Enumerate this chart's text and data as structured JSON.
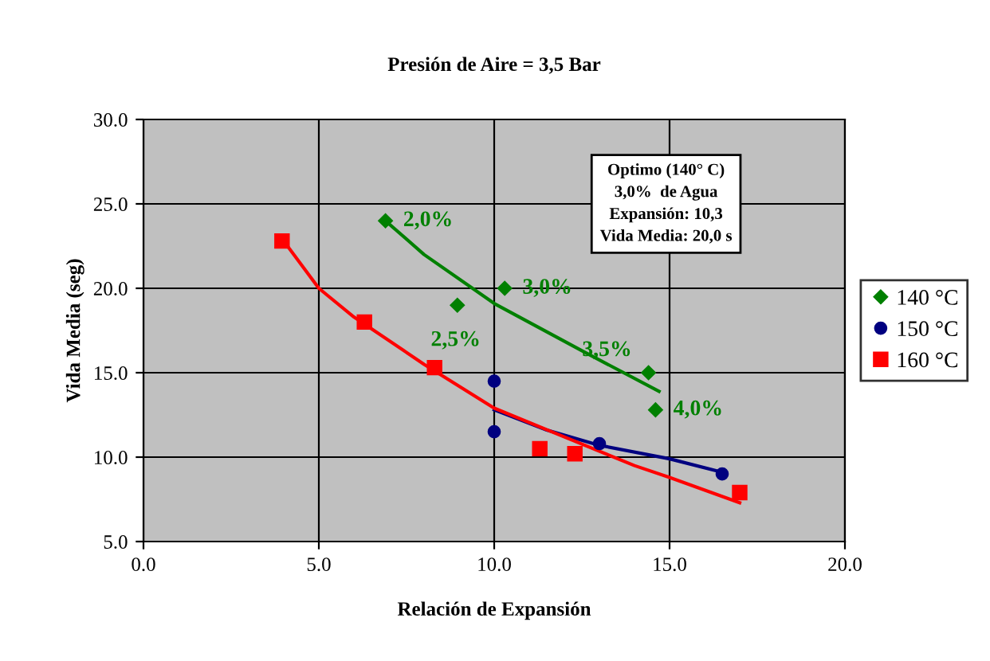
{
  "chart_data": {
    "type": "scatter",
    "title": "Presión de Aire = 3,5 Bar",
    "xlabel": "Relación de Expansión",
    "ylabel": "Vida Media (seg)",
    "xlim": [
      0,
      20
    ],
    "ylim": [
      5,
      30
    ],
    "xticks": [
      {
        "value": 0,
        "label": "0.0"
      },
      {
        "value": 5,
        "label": "5.0"
      },
      {
        "value": 10,
        "label": "10.0"
      },
      {
        "value": 15,
        "label": "15.0"
      },
      {
        "value": 20,
        "label": "20.0"
      }
    ],
    "yticks": [
      {
        "value": 5,
        "label": "5.0"
      },
      {
        "value": 10,
        "label": "10.0"
      },
      {
        "value": 15,
        "label": "15.0"
      },
      {
        "value": 20,
        "label": "20.0"
      },
      {
        "value": 25,
        "label": "25.0"
      },
      {
        "value": 30,
        "label": "30.0"
      }
    ],
    "grid": true,
    "legend": "right",
    "series": [
      {
        "name": "140 °C",
        "color": "#008000",
        "marker": "diamond",
        "x": [
          6.9,
          8.95,
          10.3,
          14.4,
          14.6
        ],
        "values": [
          24.0,
          19.0,
          20.0,
          15.0,
          12.8
        ]
      },
      {
        "name": "150 °C",
        "color": "#000080",
        "marker": "circle",
        "x": [
          10.0,
          10.0,
          13.0,
          16.5
        ],
        "values": [
          14.5,
          11.5,
          10.8,
          9.0
        ]
      },
      {
        "name": "160 °C",
        "color": "#ff0000",
        "marker": "square",
        "x": [
          3.95,
          6.3,
          8.3,
          11.3,
          12.3,
          17.0
        ],
        "values": [
          22.8,
          18.0,
          15.3,
          10.5,
          10.2,
          7.9
        ]
      },
      {
        "type": "line",
        "color": "#008000",
        "x": [
          6.9,
          8.0,
          10.0,
          12.5,
          14.7
        ],
        "values": [
          24.0,
          22.0,
          19.1,
          16.3,
          13.9
        ]
      },
      {
        "type": "line",
        "color": "#000080",
        "x": [
          10.0,
          11.5,
          13.0,
          15.0,
          16.5
        ],
        "values": [
          12.8,
          11.6,
          10.7,
          9.9,
          9.1
        ]
      },
      {
        "type": "line",
        "color": "#ff0000",
        "x": [
          4.0,
          5.0,
          6.0,
          8.0,
          10.0,
          12.0,
          14.0,
          15.0,
          17.0
        ],
        "values": [
          22.8,
          20.0,
          18.3,
          15.5,
          12.9,
          11.2,
          9.5,
          8.8,
          7.3
        ]
      }
    ],
    "annotations": [
      {
        "text": "2,0%",
        "x": 6.9,
        "y": 24.0
      },
      {
        "text": "2,5%",
        "x": 8.95,
        "y": 19.0
      },
      {
        "text": "3,0%",
        "x": 10.3,
        "y": 20.0
      },
      {
        "text": "3,5%",
        "x": 14.4,
        "y": 15.0
      },
      {
        "text": "4,0%",
        "x": 14.6,
        "y": 12.8
      },
      "Optimo (140° C)\n3,0%  de Agua\nExpansión: 10,3\nVida Media: 20,0 s"
    ]
  }
}
